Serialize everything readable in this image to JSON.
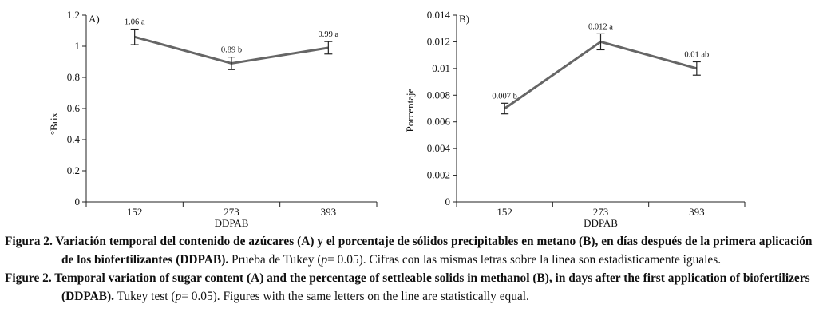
{
  "chart_data": [
    {
      "type": "line",
      "panel": "A)",
      "xlabel": "DDPAB",
      "ylabel": "°Brix",
      "categories": [
        "152",
        "273",
        "393"
      ],
      "values": [
        1.06,
        0.89,
        0.99
      ],
      "error": [
        0.05,
        0.04,
        0.04
      ],
      "point_labels": [
        "1.06 a",
        "0.89 b",
        "0.99 a"
      ],
      "ylim": [
        0,
        1.2
      ],
      "yticks": [
        "0",
        "0.2",
        "0.4",
        "0.6",
        "0.8",
        "1",
        "1.2"
      ],
      "line_color": "#666666",
      "grid": false
    },
    {
      "type": "line",
      "panel": "B)",
      "xlabel": "DDPAB",
      "ylabel": "Porcentaje",
      "categories": [
        "152",
        "273",
        "393"
      ],
      "values": [
        0.007,
        0.012,
        0.01
      ],
      "error": [
        0.0004,
        0.0006,
        0.0005
      ],
      "point_labels": [
        "0.007 b",
        "0.012 a",
        "0.01 ab"
      ],
      "ylim": [
        0,
        0.014
      ],
      "yticks": [
        "0",
        "0.002",
        "0.004",
        "0.006",
        "0.008",
        "0.01",
        "0.012",
        "0.014"
      ],
      "line_color": "#666666",
      "grid": false
    }
  ],
  "captions": {
    "es": {
      "lead": "Figura 2. Variación temporal del contenido de azúcares (A) y el porcentaje de sólidos precipitables en metano (B), en días después de la primera aplicación de los biofertilizantes (DDPAB).",
      "pre": " Prueba de Tukey (",
      "p": "p",
      "post": "= 0.05). Cifras con las mismas letras sobre la línea son estadísticamente iguales."
    },
    "en": {
      "lead": "Figure 2. Temporal variation of sugar content (A) and the percentage of settleable solids in methanol (B), in days after the first application of biofertilizers (DDPAB).",
      "pre": " Tukey test (",
      "p": "p",
      "post": "= 0.05). Figures with the same letters on the line are statistically equal."
    }
  }
}
